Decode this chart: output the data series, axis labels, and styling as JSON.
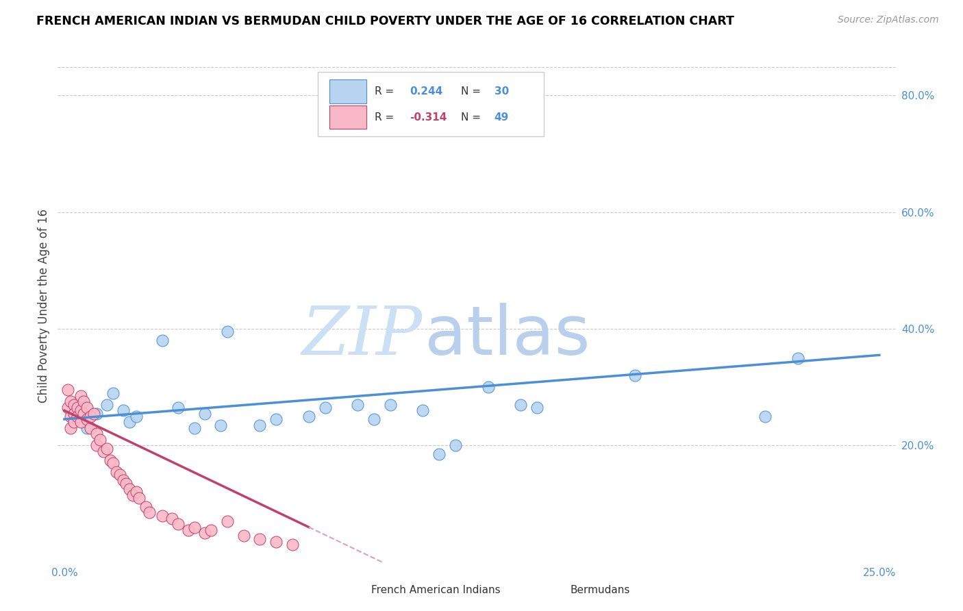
{
  "title": "FRENCH AMERICAN INDIAN VS BERMUDAN CHILD POVERTY UNDER THE AGE OF 16 CORRELATION CHART",
  "source": "Source: ZipAtlas.com",
  "ylabel": "Child Poverty Under the Age of 16",
  "x_tick_labels": [
    "0.0%",
    "",
    "",
    "",
    "",
    "25.0%"
  ],
  "x_tick_values": [
    0.0,
    0.05,
    0.1,
    0.15,
    0.2,
    0.25
  ],
  "y_tick_labels_right": [
    "20.0%",
    "40.0%",
    "60.0%",
    "80.0%"
  ],
  "y_tick_values": [
    0.2,
    0.4,
    0.6,
    0.8
  ],
  "xlim": [
    -0.002,
    0.255
  ],
  "ylim": [
    0.0,
    0.88
  ],
  "legend_entries": [
    {
      "label": "French American Indians",
      "R": 0.244,
      "N": 30
    },
    {
      "label": "Bermudans",
      "R": -0.314,
      "N": 49
    }
  ],
  "blue_scatter_x": [
    0.005,
    0.007,
    0.01,
    0.013,
    0.015,
    0.018,
    0.02,
    0.022,
    0.03,
    0.035,
    0.04,
    0.043,
    0.048,
    0.05,
    0.06,
    0.065,
    0.075,
    0.08,
    0.09,
    0.095,
    0.1,
    0.11,
    0.115,
    0.12,
    0.13,
    0.14,
    0.145,
    0.175,
    0.215,
    0.225
  ],
  "blue_scatter_y": [
    0.27,
    0.23,
    0.255,
    0.27,
    0.29,
    0.26,
    0.24,
    0.25,
    0.38,
    0.265,
    0.23,
    0.255,
    0.235,
    0.395,
    0.235,
    0.245,
    0.25,
    0.265,
    0.27,
    0.245,
    0.27,
    0.26,
    0.185,
    0.2,
    0.3,
    0.27,
    0.265,
    0.32,
    0.25,
    0.35
  ],
  "pink_scatter_x": [
    0.001,
    0.001,
    0.002,
    0.002,
    0.002,
    0.003,
    0.003,
    0.003,
    0.004,
    0.004,
    0.005,
    0.005,
    0.005,
    0.006,
    0.006,
    0.007,
    0.007,
    0.008,
    0.008,
    0.009,
    0.01,
    0.01,
    0.011,
    0.012,
    0.013,
    0.014,
    0.015,
    0.016,
    0.017,
    0.018,
    0.019,
    0.02,
    0.021,
    0.022,
    0.023,
    0.025,
    0.026,
    0.03,
    0.033,
    0.035,
    0.038,
    0.04,
    0.043,
    0.045,
    0.05,
    0.055,
    0.06,
    0.065,
    0.07
  ],
  "pink_scatter_y": [
    0.295,
    0.265,
    0.275,
    0.25,
    0.23,
    0.27,
    0.255,
    0.24,
    0.265,
    0.25,
    0.285,
    0.26,
    0.24,
    0.275,
    0.255,
    0.265,
    0.245,
    0.25,
    0.23,
    0.255,
    0.22,
    0.2,
    0.21,
    0.19,
    0.195,
    0.175,
    0.17,
    0.155,
    0.15,
    0.14,
    0.135,
    0.125,
    0.115,
    0.12,
    0.11,
    0.095,
    0.085,
    0.08,
    0.075,
    0.065,
    0.055,
    0.06,
    0.05,
    0.055,
    0.07,
    0.045,
    0.04,
    0.035,
    0.03
  ],
  "blue_line_color": "#4a90d9",
  "pink_line_color": "#c0426a",
  "pink_dash_color": "#e0a0b8",
  "scatter_blue_fill": "#b8d4f0",
  "scatter_blue_edge": "#4a90d9",
  "scatter_pink_fill": "#f8b8c8",
  "scatter_pink_edge": "#c0426a",
  "background_color": "#ffffff",
  "grid_color": "#c8c8c8",
  "title_color": "#000000",
  "axis_tick_color": "#4a90d9",
  "r_color_blue": "#4a90d9",
  "r_color_pink": "#c0426a",
  "watermark_zip_color": "#cce0f5",
  "watermark_atlas_color": "#b8d0ec"
}
